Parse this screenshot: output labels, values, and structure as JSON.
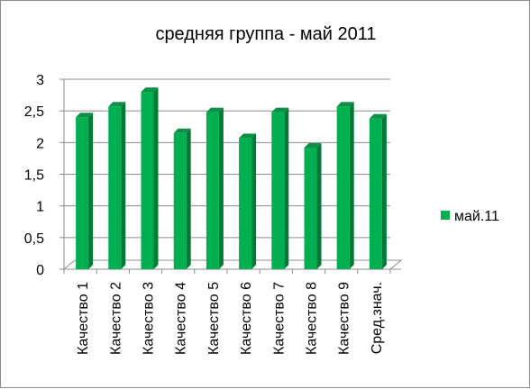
{
  "chart_data": {
    "type": "bar",
    "title": "средняя группа - май 2011",
    "categories": [
      "Качество 1",
      "Качество 2",
      "Качество 3",
      "Качество 4",
      "Качество 5",
      "Качество 6",
      "Качество 7",
      "Качество 8",
      "Качество 9",
      "Сред.знач."
    ],
    "series": [
      {
        "name": "май.11",
        "color": "#00b050",
        "values": [
          2.4,
          2.57,
          2.8,
          2.15,
          2.48,
          2.07,
          2.48,
          1.92,
          2.57,
          2.38
        ]
      }
    ],
    "y_ticks": [
      "0",
      "0,5",
      "1",
      "1,5",
      "2",
      "2,5",
      "3"
    ],
    "ylim": [
      0,
      3
    ],
    "grid": true,
    "legend_position": "right",
    "style": "3d-column"
  }
}
